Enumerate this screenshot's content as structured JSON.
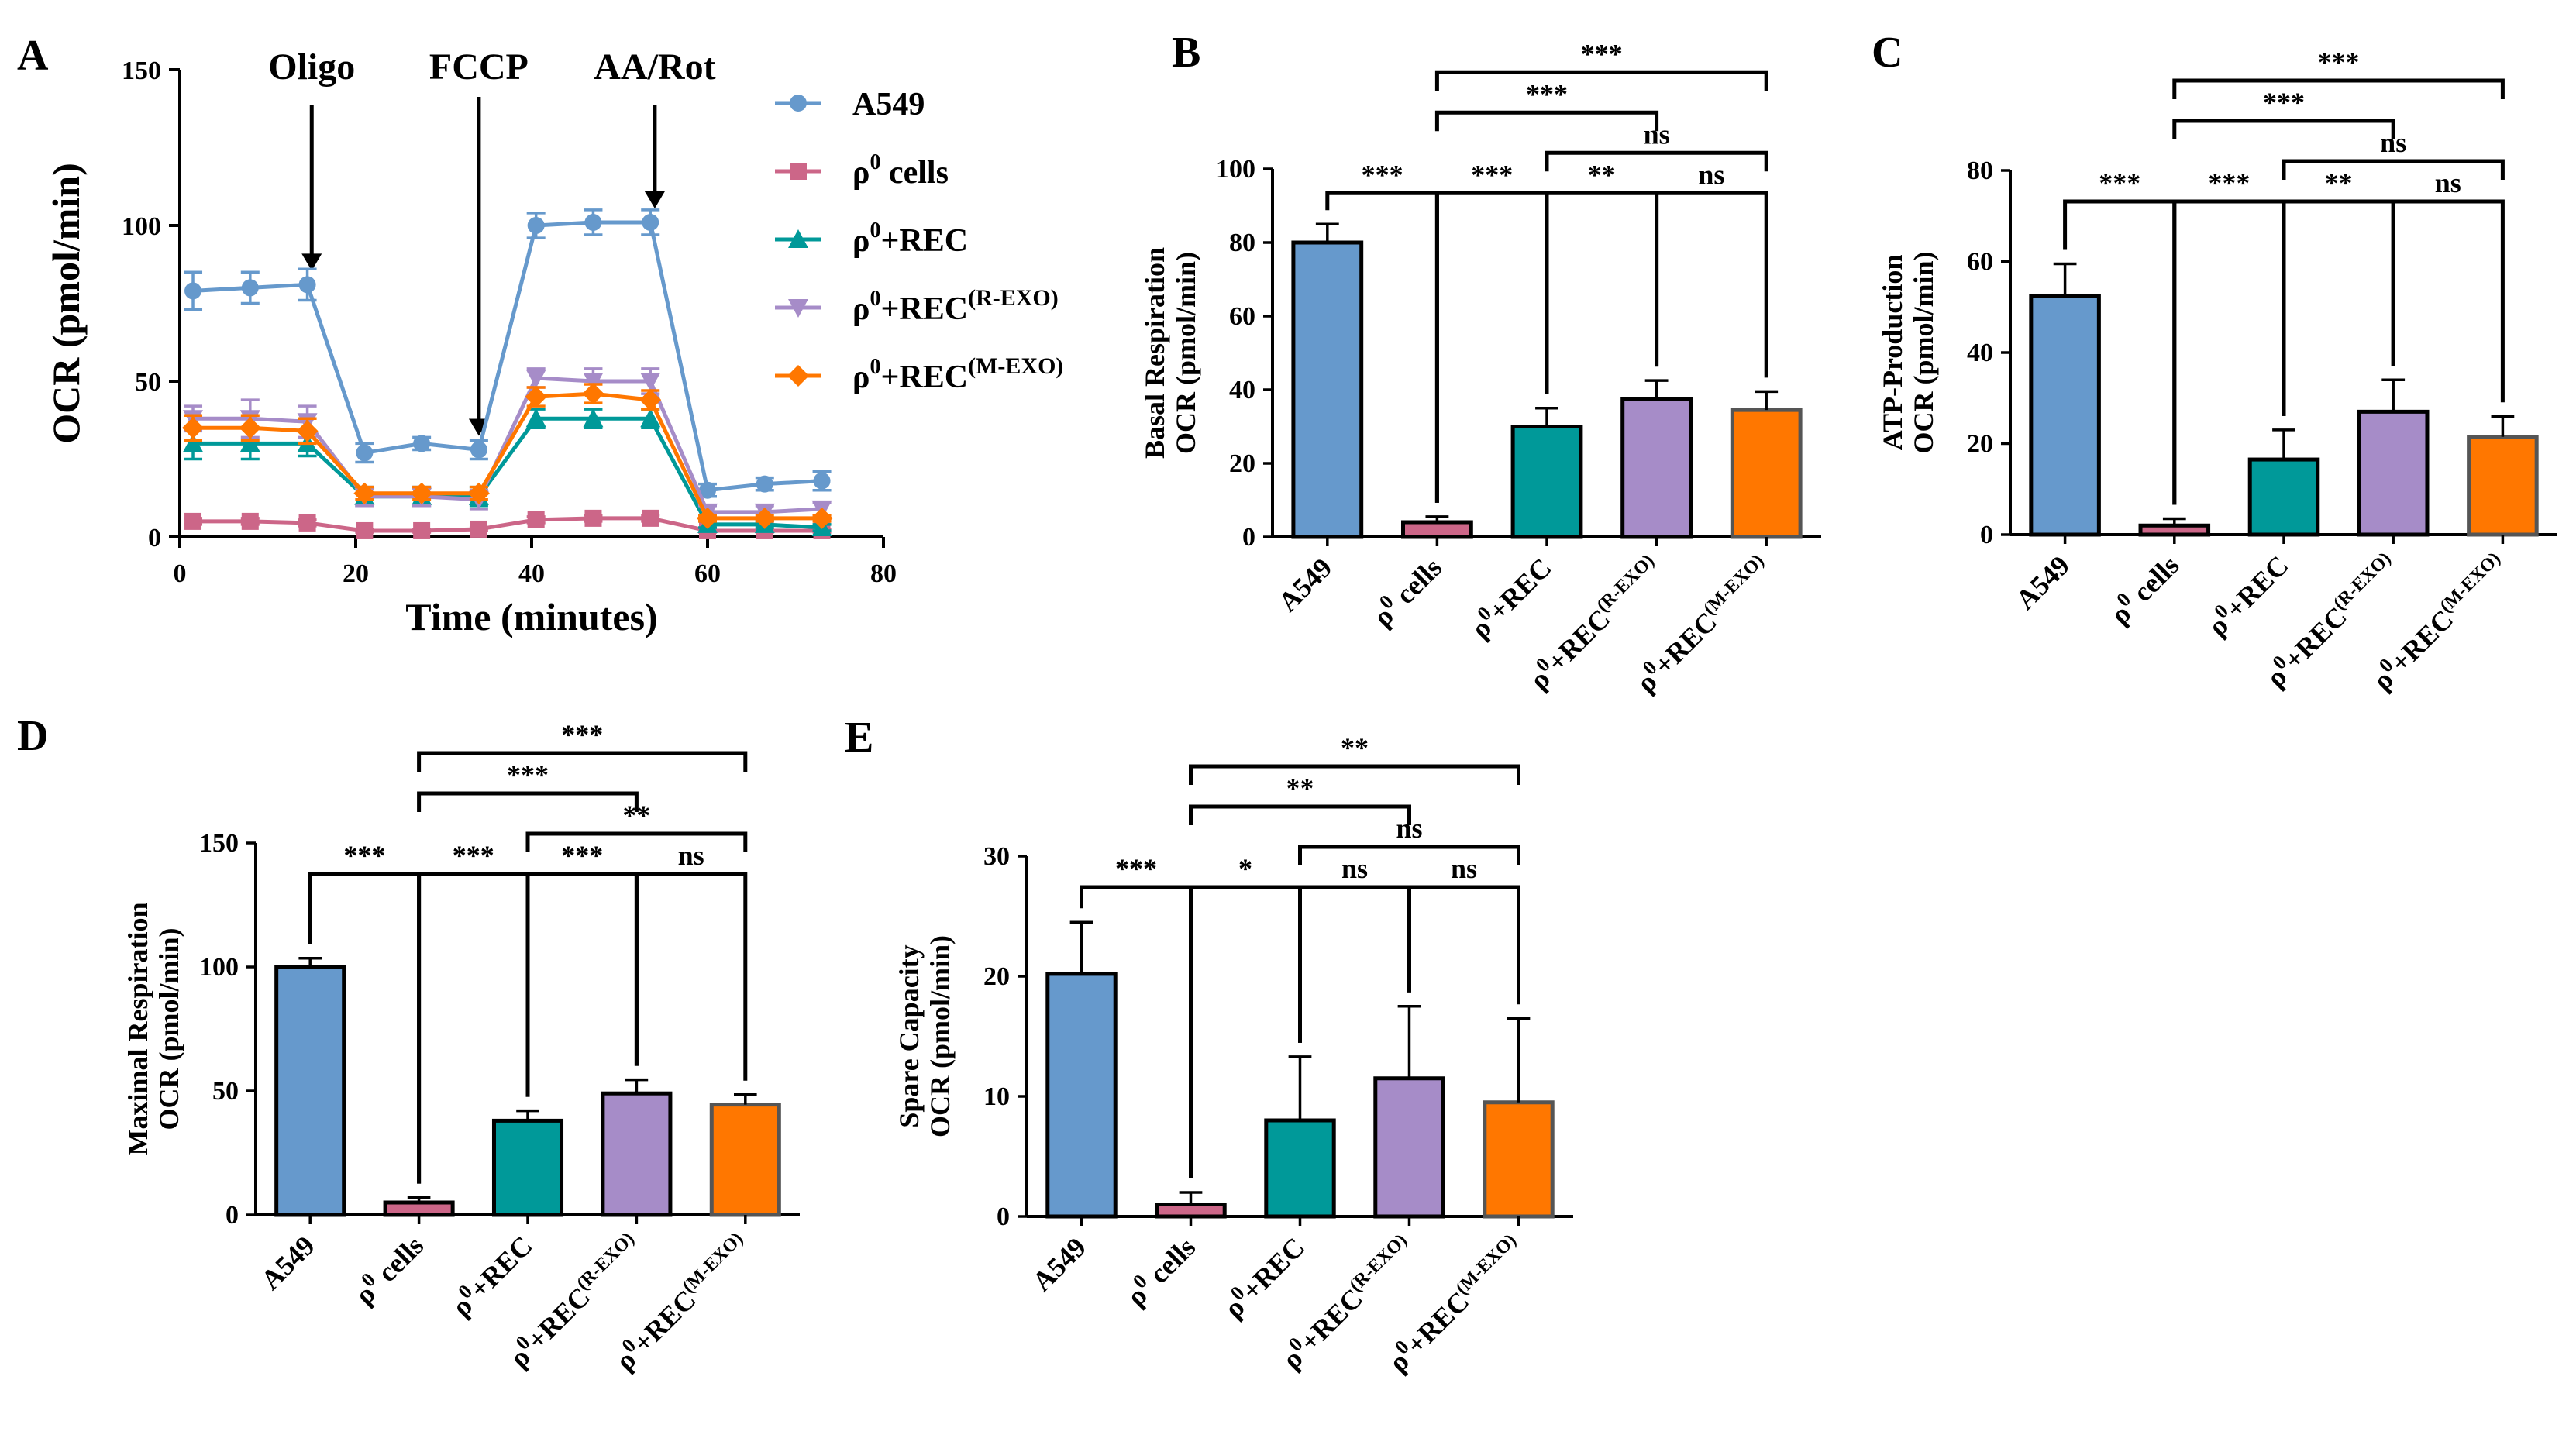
{
  "colors": {
    "A549": "#6699cc",
    "rho0_cells": "#cc6688",
    "rho0_REC": "#009999",
    "rho0_REC_R_EXO": "#a68cc8",
    "rho0_REC_M_EXO": "#ff7700"
  },
  "chart_data": [
    {
      "panel": "A",
      "type": "line",
      "xlabel": "Time (minutes)",
      "ylabel": "OCR (pmol/min)",
      "xlim": [
        0,
        80
      ],
      "ylim": [
        0,
        150
      ],
      "xticks": [
        "0",
        "20",
        "40",
        "60",
        "80"
      ],
      "yticks": [
        "0",
        "50",
        "100",
        "150"
      ],
      "annotations": [
        "Oligo",
        "FCCP",
        "AA/Rot"
      ],
      "annotation_times": [
        15,
        34,
        54
      ],
      "x": [
        1.5,
        8,
        14.5,
        21,
        27.5,
        34,
        40.5,
        47,
        53.5,
        60,
        66.5,
        73
      ],
      "legend_position": "top-right",
      "series": [
        {
          "name": "A549",
          "color_key": "A549",
          "marker": "circle",
          "values": [
            79,
            80,
            81,
            27,
            30,
            28,
            100,
            101,
            101,
            15,
            17,
            18
          ],
          "errors": [
            6,
            5,
            5,
            3,
            2,
            3,
            4,
            4,
            4,
            2,
            2,
            3
          ]
        },
        {
          "name": "ρ⁰ cells",
          "color_key": "rho0_cells",
          "marker": "square",
          "values": [
            5,
            5,
            4.5,
            2,
            2,
            2.5,
            5.5,
            6,
            6,
            2,
            2,
            2
          ],
          "errors": [
            1,
            1,
            1,
            0.5,
            0.5,
            0.5,
            1,
            1,
            1,
            0.5,
            0.5,
            0.5
          ]
        },
        {
          "name": "ρ⁰+REC",
          "color_key": "rho0_REC",
          "marker": "triangle-up",
          "values": [
            30,
            30,
            30,
            13,
            13,
            13,
            38,
            38,
            38,
            4,
            4,
            3
          ],
          "errors": [
            5,
            5,
            4,
            3,
            3,
            3,
            3,
            3,
            3,
            1,
            1,
            1
          ]
        },
        {
          "name": "ρ⁰+REC(R-EXO)",
          "color_key": "rho0_REC_R_EXO",
          "marker": "triangle-down",
          "values": [
            38,
            38,
            37,
            13,
            13,
            12,
            51,
            50,
            50,
            8,
            8,
            9
          ],
          "errors": [
            4,
            6,
            5,
            3,
            3,
            3,
            3,
            4,
            4,
            2,
            2,
            2
          ]
        },
        {
          "name": "ρ⁰+REC(M-EXO)",
          "color_key": "rho0_REC_M_EXO",
          "marker": "diamond",
          "values": [
            35,
            35,
            34,
            14,
            14,
            14,
            45,
            46,
            44,
            6,
            6,
            6
          ],
          "errors": [
            4,
            4,
            4,
            2,
            2,
            2,
            3,
            3,
            3,
            1,
            1,
            1
          ]
        }
      ]
    },
    {
      "panel": "B",
      "type": "bar",
      "ylabel_line1": "Basal Respiration",
      "ylabel_line2": "OCR (pmol/min)",
      "ylim": [
        0,
        100
      ],
      "yticks": [
        "0",
        "20",
        "40",
        "60",
        "80",
        "100"
      ],
      "values": [
        80,
        4,
        30,
        37.5,
        34.5
      ],
      "errors": [
        5,
        1.5,
        5,
        5,
        5
      ],
      "comparisons": [
        {
          "i": 0,
          "j": 1,
          "label": "***"
        },
        {
          "i": 1,
          "j": 2,
          "label": "***"
        },
        {
          "i": 2,
          "j": 3,
          "label": "**"
        },
        {
          "i": 3,
          "j": 4,
          "label": "ns"
        },
        {
          "i": 2,
          "j": 4,
          "label": "ns"
        },
        {
          "i": 1,
          "j": 3,
          "label": "***"
        },
        {
          "i": 1,
          "j": 4,
          "label": "***"
        }
      ]
    },
    {
      "panel": "C",
      "type": "bar",
      "ylabel_line1": "ATP-Production",
      "ylabel_line2": "OCR (pmol/min)",
      "ylim": [
        0,
        80
      ],
      "yticks": [
        "0",
        "20",
        "40",
        "60",
        "80"
      ],
      "values": [
        52.5,
        2,
        16.5,
        27,
        21.5
      ],
      "errors": [
        7,
        1.5,
        6.5,
        7,
        4.5
      ],
      "comparisons": [
        {
          "i": 0,
          "j": 1,
          "label": "***"
        },
        {
          "i": 1,
          "j": 2,
          "label": "***"
        },
        {
          "i": 2,
          "j": 3,
          "label": "**"
        },
        {
          "i": 3,
          "j": 4,
          "label": "ns"
        },
        {
          "i": 2,
          "j": 4,
          "label": "ns"
        },
        {
          "i": 1,
          "j": 3,
          "label": "***"
        },
        {
          "i": 1,
          "j": 4,
          "label": "***"
        }
      ]
    },
    {
      "panel": "D",
      "type": "bar",
      "ylabel_line1": "Maximal Respiration",
      "ylabel_line2": "OCR (pmol/min)",
      "ylim": [
        0,
        150
      ],
      "yticks": [
        "0",
        "50",
        "100",
        "150"
      ],
      "values": [
        100,
        5,
        38,
        49,
        44.5
      ],
      "errors": [
        3.5,
        2,
        4,
        5.5,
        4
      ],
      "comparisons": [
        {
          "i": 0,
          "j": 1,
          "label": "***"
        },
        {
          "i": 1,
          "j": 2,
          "label": "***"
        },
        {
          "i": 2,
          "j": 3,
          "label": "***"
        },
        {
          "i": 3,
          "j": 4,
          "label": "ns"
        },
        {
          "i": 2,
          "j": 4,
          "label": "**"
        },
        {
          "i": 1,
          "j": 3,
          "label": "***"
        },
        {
          "i": 1,
          "j": 4,
          "label": "***"
        }
      ]
    },
    {
      "panel": "E",
      "type": "bar",
      "ylabel_line1": "Spare Capacity",
      "ylabel_line2": "OCR (pmol/min)",
      "ylim": [
        0,
        30
      ],
      "yticks": [
        "0",
        "10",
        "20",
        "30"
      ],
      "values": [
        20.2,
        1,
        8,
        11.5,
        9.5
      ],
      "errors": [
        4.3,
        1,
        5.3,
        6,
        7
      ],
      "comparisons": [
        {
          "i": 0,
          "j": 1,
          "label": "***"
        },
        {
          "i": 1,
          "j": 2,
          "label": "*"
        },
        {
          "i": 2,
          "j": 3,
          "label": "ns"
        },
        {
          "i": 3,
          "j": 4,
          "label": "ns"
        },
        {
          "i": 2,
          "j": 4,
          "label": "ns"
        },
        {
          "i": 1,
          "j": 3,
          "label": "**"
        },
        {
          "i": 1,
          "j": 4,
          "label": "**"
        }
      ]
    }
  ],
  "categories": [
    {
      "key": "A549",
      "base": "A549",
      "sup": "",
      "post": "",
      "sub": ""
    },
    {
      "key": "rho0_cells",
      "base": "ρ",
      "sup": "0",
      "post": " cells",
      "sub": ""
    },
    {
      "key": "rho0_REC",
      "base": "ρ",
      "sup": "0",
      "post": "+REC",
      "sub": ""
    },
    {
      "key": "rho0_REC_R_EXO",
      "base": "ρ",
      "sup": "0",
      "post": "+REC",
      "sub": "(R-EXO)"
    },
    {
      "key": "rho0_REC_M_EXO",
      "base": "ρ",
      "sup": "0",
      "post": "+REC",
      "sub": "(M-EXO)"
    }
  ]
}
